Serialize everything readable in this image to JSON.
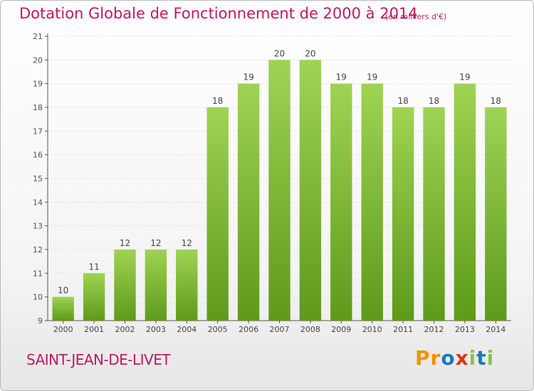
{
  "title": "Dotation Globale de Fonctionnement de 2000 à 2014",
  "unit_note": "(en milliers d'€)",
  "commune": "SAINT-JEAN-DE-LIVET",
  "logo": {
    "text": "Proxiti",
    "letters": [
      "P",
      "r",
      "o",
      "x",
      "i",
      "t",
      "i"
    ],
    "colors": [
      "#f39200",
      "#f39200",
      "#1a78c2",
      "#e63312",
      "#8cc63f",
      "#1a78c2",
      "#8cc63f"
    ]
  },
  "colors": {
    "accent": "#c2185b",
    "bar_top": "#9fd354",
    "bar_bottom": "#5e9a1a",
    "grid": "#e4e4e4",
    "axis": "#555555"
  },
  "chart_data": {
    "type": "bar",
    "categories": [
      "2000",
      "2001",
      "2002",
      "2003",
      "2004",
      "2005",
      "2006",
      "2007",
      "2008",
      "2009",
      "2010",
      "2011",
      "2012",
      "2013",
      "2014"
    ],
    "values": [
      10,
      11,
      12,
      12,
      12,
      18,
      19,
      20,
      20,
      19,
      19,
      18,
      18,
      19,
      18
    ],
    "value_labels": [
      "10",
      "11",
      "12",
      "12",
      "12",
      "18",
      "19",
      "20",
      "20",
      "19",
      "19",
      "18",
      "18",
      "19",
      "18"
    ],
    "yticks": [
      "9",
      "10",
      "11",
      "12",
      "13",
      "14",
      "15",
      "16",
      "17",
      "18",
      "19",
      "20",
      "21"
    ],
    "ylim": [
      9,
      21
    ],
    "grid": true,
    "legend": "none"
  }
}
